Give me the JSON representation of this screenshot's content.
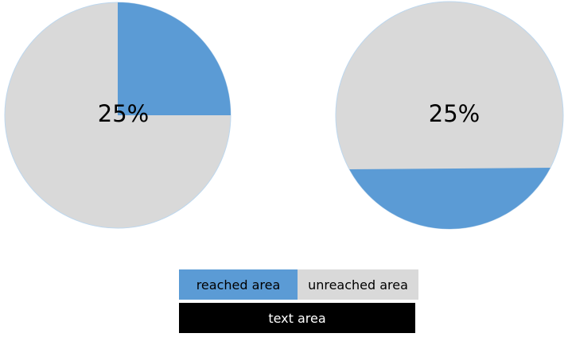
{
  "colors": {
    "reached": "#5b9bd5",
    "unreached": "#d9d9d9",
    "text_area_bg": "#000000",
    "text_area_fg": "#ffffff",
    "label": "#000000",
    "outline": "#bdd7ee"
  },
  "pies": [
    {
      "label": "25%",
      "fraction": 0.25,
      "fill_style": "sector"
    },
    {
      "label": "25%",
      "fraction": 0.25,
      "fill_style": "bottom-segment"
    }
  ],
  "legend": {
    "reached_label": "reached area",
    "unreached_label": "unreached area",
    "text_area_label": "text area"
  }
}
